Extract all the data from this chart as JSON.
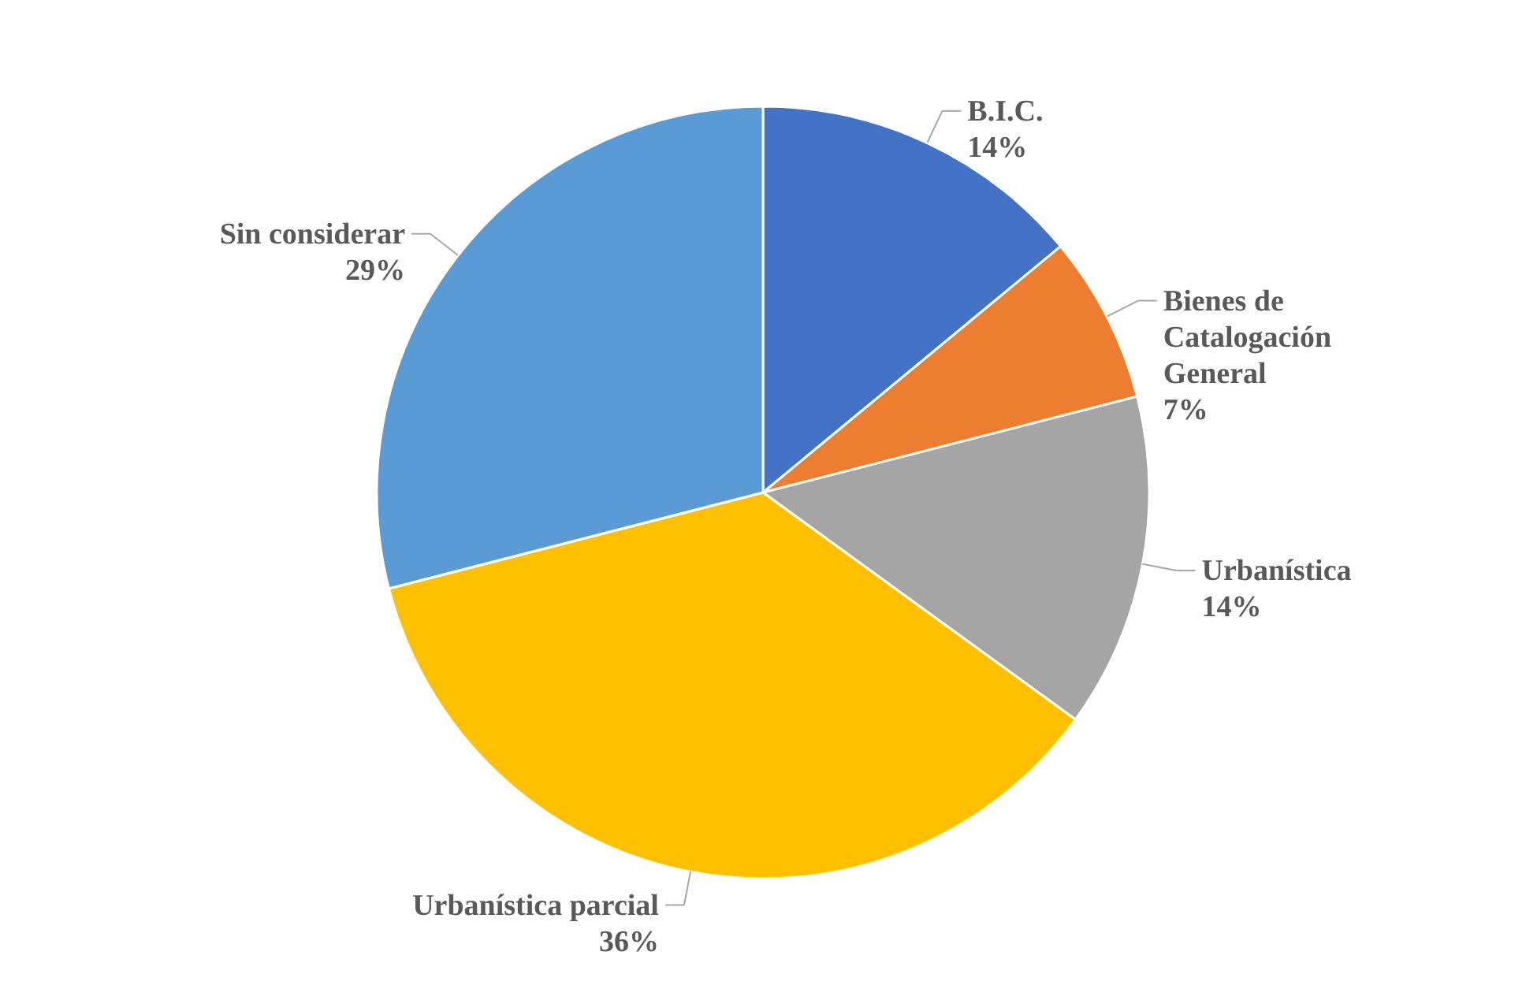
{
  "chart_data": {
    "type": "pie",
    "categories": [
      "B.I.C.",
      "Bienes de Catalogación General",
      "Urbanística",
      "Urbanística parcial",
      "Sin considerar"
    ],
    "values": [
      14,
      7,
      14,
      36,
      29
    ],
    "value_labels": [
      "14%",
      "7%",
      "14%",
      "36%",
      "29%"
    ],
    "colors": [
      "#4472c4",
      "#ed7d31",
      "#a5a5a5",
      "#ffc000",
      "#5b9bd5"
    ]
  }
}
